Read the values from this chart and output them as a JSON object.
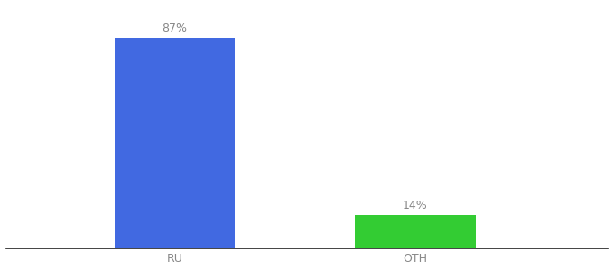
{
  "categories": [
    "RU",
    "OTH"
  ],
  "values": [
    87,
    14
  ],
  "bar_colors": [
    "#4169e1",
    "#33cc33"
  ],
  "label_texts": [
    "87%",
    "14%"
  ],
  "ylim": [
    0,
    100
  ],
  "background_color": "#ffffff",
  "tick_label_color": "#888888",
  "value_label_color": "#888888",
  "bar_width": 0.5,
  "x_positions": [
    1,
    2
  ],
  "xlim": [
    0.3,
    2.8
  ],
  "figsize": [
    6.8,
    3.0
  ],
  "dpi": 100,
  "spine_color": "#222222",
  "label_fontsize": 9,
  "tick_fontsize": 9
}
